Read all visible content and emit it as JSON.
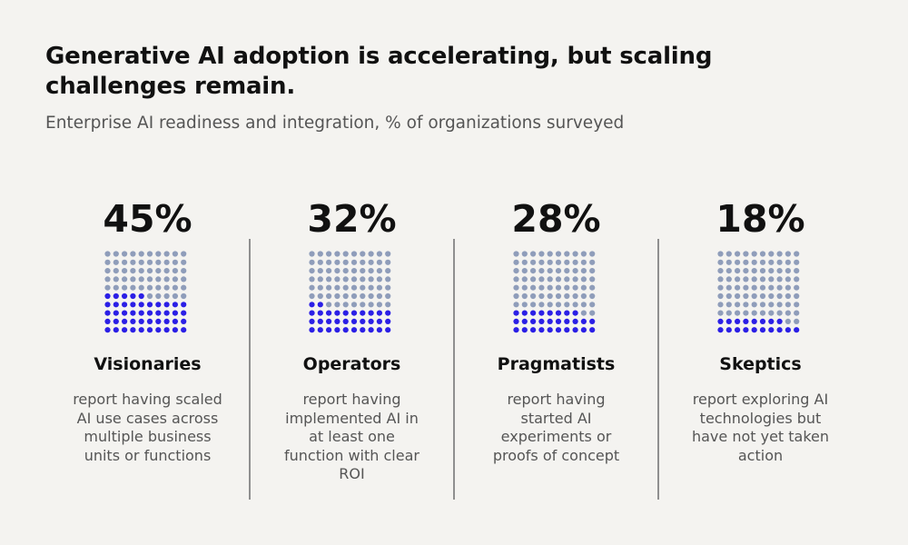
{
  "header": {
    "title": "Generative AI adoption is accelerating, but scaling challenges remain.",
    "subtitle": "Enterprise AI readiness and integration, % of organizations surveyed"
  },
  "colors": {
    "filled_dot": "#2b1fe6",
    "empty_dot": "#8f9dba",
    "background": "#f4f3f0",
    "divider": "#8f8f8f"
  },
  "chart_data": {
    "type": "waffle",
    "grid": {
      "rows": 10,
      "cols": 10
    },
    "title": "Generative AI adoption is accelerating, but scaling challenges remain.",
    "subtitle": "Enterprise AI readiness and integration, % of organizations surveyed",
    "segments": [
      {
        "value": 45,
        "value_label": "45%",
        "label": "Visionaries",
        "description": "report having scaled AI use cases across multiple business units or functions"
      },
      {
        "value": 32,
        "value_label": "32%",
        "label": "Operators",
        "description": "report having implemented AI in at least one function with clear ROI"
      },
      {
        "value": 28,
        "value_label": "28%",
        "label": "Pragmatists",
        "description": "report having started AI experiments or proofs of concept"
      },
      {
        "value": 18,
        "value_label": "18%",
        "label": "Skeptics",
        "description": "report exploring AI technologies but have not yet taken action"
      }
    ]
  }
}
